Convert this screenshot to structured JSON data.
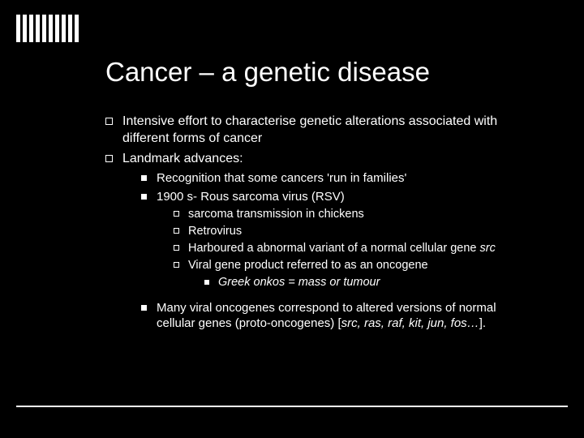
{
  "title": "Cancer – a genetic disease",
  "l1_a": "Intensive effort to characterise genetic alterations associated with different forms of cancer",
  "l1_b": "Landmark advances:",
  "l2_a": "Recognition that some cancers 'run in families'",
  "l2_b": "1900 s- Rous sarcoma virus (RSV)",
  "l3_a": "sarcoma transmission in chickens",
  "l3_b": "Retrovirus",
  "l3_c_pre": "Harboured a abnormal variant of a normal cellular gene ",
  "l3_c_it": "src",
  "l3_d": "Viral gene product referred to as an oncogene",
  "l4_a": "Greek onkos = mass or tumour",
  "l2_c_pre": "Many viral oncogenes correspond to altered versions of normal cellular genes (proto-oncogenes) [",
  "l2_c_it": "src, ras, raf, kit, jun, fos…",
  "l2_c_post": "]."
}
